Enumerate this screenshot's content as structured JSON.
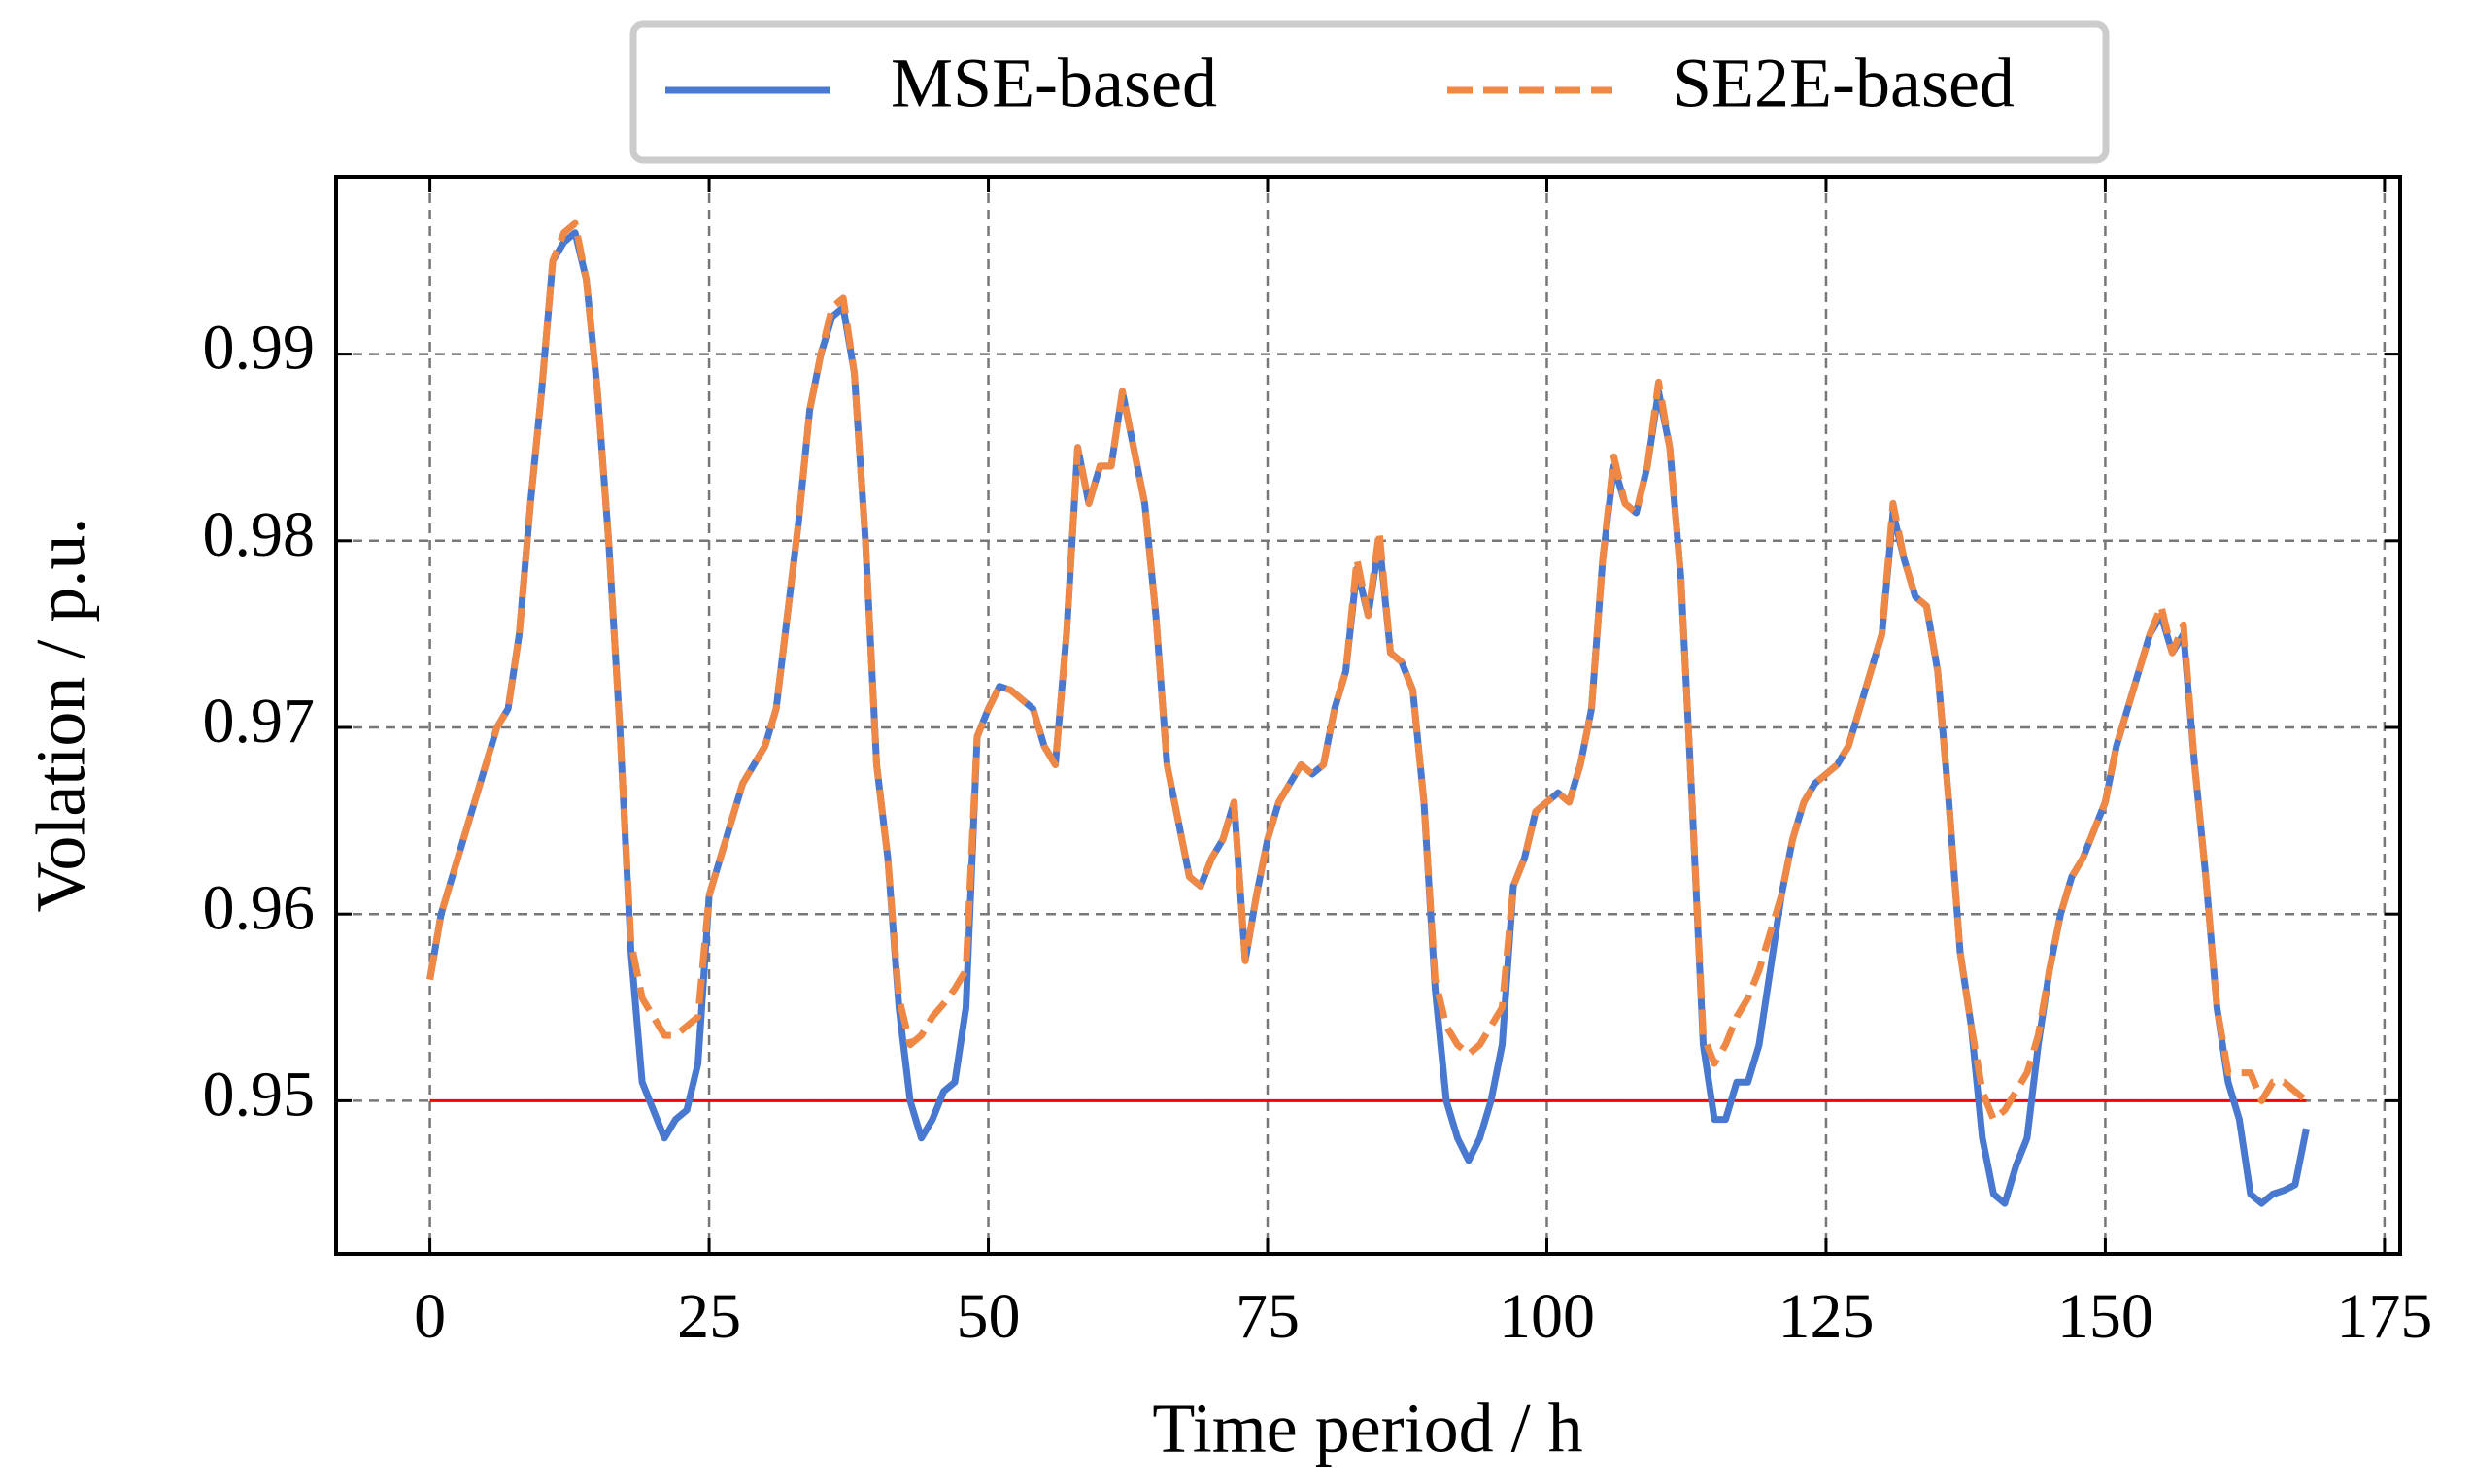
{
  "chart_data": {
    "type": "line",
    "xlabel": "Time period / h",
    "ylabel": "Volation / p.u.",
    "xlim": [
      -8.4,
      176.4
    ],
    "ylim": [
      0.9418,
      0.9995
    ],
    "xticks": [
      0,
      25,
      50,
      75,
      100,
      125,
      150,
      175
    ],
    "yticks": [
      0.95,
      0.96,
      0.97,
      0.98,
      0.99
    ],
    "grid": true,
    "legend": "upper center",
    "threshold": {
      "value": 0.95,
      "color": "#ff0000"
    },
    "x": [
      0,
      1,
      2,
      3,
      4,
      5,
      6,
      7,
      8,
      9,
      10,
      11,
      12,
      13,
      14,
      15,
      16,
      17,
      18,
      19,
      20,
      21,
      22,
      23,
      24,
      25,
      26,
      27,
      28,
      29,
      30,
      31,
      32,
      33,
      34,
      35,
      36,
      37,
      38,
      39,
      40,
      41,
      42,
      43,
      44,
      45,
      46,
      47,
      48,
      49,
      50,
      51,
      52,
      53,
      54,
      55,
      56,
      57,
      58,
      59,
      60,
      61,
      62,
      63,
      64,
      65,
      66,
      67,
      68,
      69,
      70,
      71,
      72,
      73,
      74,
      75,
      76,
      77,
      78,
      79,
      80,
      81,
      82,
      83,
      84,
      85,
      86,
      87,
      88,
      89,
      90,
      91,
      92,
      93,
      94,
      95,
      96,
      97,
      98,
      99,
      100,
      101,
      102,
      103,
      104,
      105,
      106,
      107,
      108,
      109,
      110,
      111,
      112,
      113,
      114,
      115,
      116,
      117,
      118,
      119,
      120,
      121,
      122,
      123,
      124,
      125,
      126,
      127,
      128,
      129,
      130,
      131,
      132,
      133,
      134,
      135,
      136,
      137,
      138,
      139,
      140,
      141,
      142,
      143,
      144,
      145,
      146,
      147,
      148,
      149,
      150,
      151,
      152,
      153,
      154,
      155,
      156,
      157,
      158,
      159,
      160,
      161,
      162,
      163,
      164,
      165,
      166,
      167,
      168
    ],
    "series": [
      {
        "name": "MSE-based",
        "color": "#4878cf",
        "dash": false,
        "values": [
          0.9565,
          0.96,
          0.962,
          0.964,
          0.966,
          0.968,
          0.97,
          0.971,
          0.975,
          0.982,
          0.988,
          0.995,
          0.996,
          0.9965,
          0.994,
          0.988,
          0.98,
          0.97,
          0.958,
          0.951,
          0.9495,
          0.948,
          0.949,
          0.9495,
          0.952,
          0.961,
          0.963,
          0.965,
          0.967,
          0.968,
          0.969,
          0.971,
          0.976,
          0.981,
          0.987,
          0.99,
          0.992,
          0.9925,
          0.989,
          0.98,
          0.968,
          0.963,
          0.955,
          0.95,
          0.948,
          0.949,
          0.9505,
          0.951,
          0.955,
          0.9695,
          0.971,
          0.9722,
          0.972,
          0.9715,
          0.971,
          0.969,
          0.968,
          0.975,
          0.985,
          0.982,
          0.984,
          0.984,
          0.988,
          0.985,
          0.982,
          0.976,
          0.968,
          0.965,
          0.962,
          0.9615,
          0.963,
          0.964,
          0.966,
          0.9575,
          0.961,
          0.964,
          0.966,
          0.967,
          0.968,
          0.9675,
          0.968,
          0.971,
          0.973,
          0.9785,
          0.976,
          0.98,
          0.974,
          0.9735,
          0.972,
          0.966,
          0.956,
          0.95,
          0.948,
          0.9468,
          0.948,
          0.95,
          0.953,
          0.9615,
          0.963,
          0.9655,
          0.966,
          0.9665,
          0.966,
          0.968,
          0.971,
          0.979,
          0.984,
          0.982,
          0.9815,
          0.984,
          0.988,
          0.985,
          0.978,
          0.966,
          0.953,
          0.949,
          0.949,
          0.951,
          0.951,
          0.953,
          0.957,
          0.961,
          0.964,
          0.966,
          0.967,
          0.9675,
          0.968,
          0.969,
          0.971,
          0.973,
          0.975,
          0.9815,
          0.979,
          0.977,
          0.9765,
          0.973,
          0.966,
          0.958,
          0.954,
          0.948,
          0.945,
          0.9445,
          0.9465,
          0.948,
          0.953,
          0.957,
          0.96,
          0.962,
          0.963,
          0.9645,
          0.966,
          0.969,
          0.971,
          0.973,
          0.975,
          0.976,
          0.974,
          0.975,
          0.968,
          0.962,
          0.955,
          0.951,
          0.949,
          0.945,
          0.9445,
          0.945,
          0.9452,
          0.9455,
          0.9485
        ]
      },
      {
        "name": "SE2E-based",
        "color": "#ee8844",
        "dash": true,
        "values": [
          0.9565,
          0.96,
          0.962,
          0.964,
          0.966,
          0.968,
          0.97,
          0.971,
          0.975,
          0.982,
          0.988,
          0.995,
          0.9965,
          0.997,
          0.994,
          0.988,
          0.98,
          0.97,
          0.9585,
          0.9555,
          0.9545,
          0.9535,
          0.9535,
          0.954,
          0.9545,
          0.961,
          0.963,
          0.965,
          0.967,
          0.968,
          0.969,
          0.971,
          0.976,
          0.981,
          0.987,
          0.99,
          0.9925,
          0.993,
          0.989,
          0.98,
          0.968,
          0.963,
          0.9555,
          0.953,
          0.9535,
          0.9545,
          0.9552,
          0.956,
          0.957,
          0.9695,
          0.971,
          0.9722,
          0.972,
          0.9715,
          0.971,
          0.969,
          0.968,
          0.975,
          0.985,
          0.982,
          0.984,
          0.984,
          0.988,
          0.985,
          0.982,
          0.976,
          0.968,
          0.965,
          0.962,
          0.9615,
          0.963,
          0.964,
          0.966,
          0.9575,
          0.961,
          0.964,
          0.966,
          0.967,
          0.968,
          0.9675,
          0.968,
          0.971,
          0.973,
          0.979,
          0.976,
          0.9805,
          0.974,
          0.9735,
          0.972,
          0.966,
          0.9565,
          0.954,
          0.953,
          0.9525,
          0.953,
          0.954,
          0.955,
          0.9615,
          0.963,
          0.9655,
          0.966,
          0.9665,
          0.966,
          0.968,
          0.971,
          0.979,
          0.9845,
          0.982,
          0.9815,
          0.984,
          0.9885,
          0.985,
          0.978,
          0.966,
          0.9535,
          0.952,
          0.953,
          0.9545,
          0.9555,
          0.957,
          0.959,
          0.961,
          0.964,
          0.966,
          0.967,
          0.9675,
          0.968,
          0.969,
          0.971,
          0.973,
          0.975,
          0.982,
          0.979,
          0.977,
          0.9765,
          0.973,
          0.966,
          0.958,
          0.954,
          0.9505,
          0.949,
          0.9495,
          0.9505,
          0.9515,
          0.9535,
          0.957,
          0.96,
          0.962,
          0.963,
          0.9645,
          0.966,
          0.969,
          0.971,
          0.973,
          0.975,
          0.9765,
          0.974,
          0.9755,
          0.968,
          0.962,
          0.955,
          0.9515,
          0.9515,
          0.9515,
          0.95,
          0.951,
          0.951,
          0.9505,
          0.95
        ]
      }
    ]
  }
}
